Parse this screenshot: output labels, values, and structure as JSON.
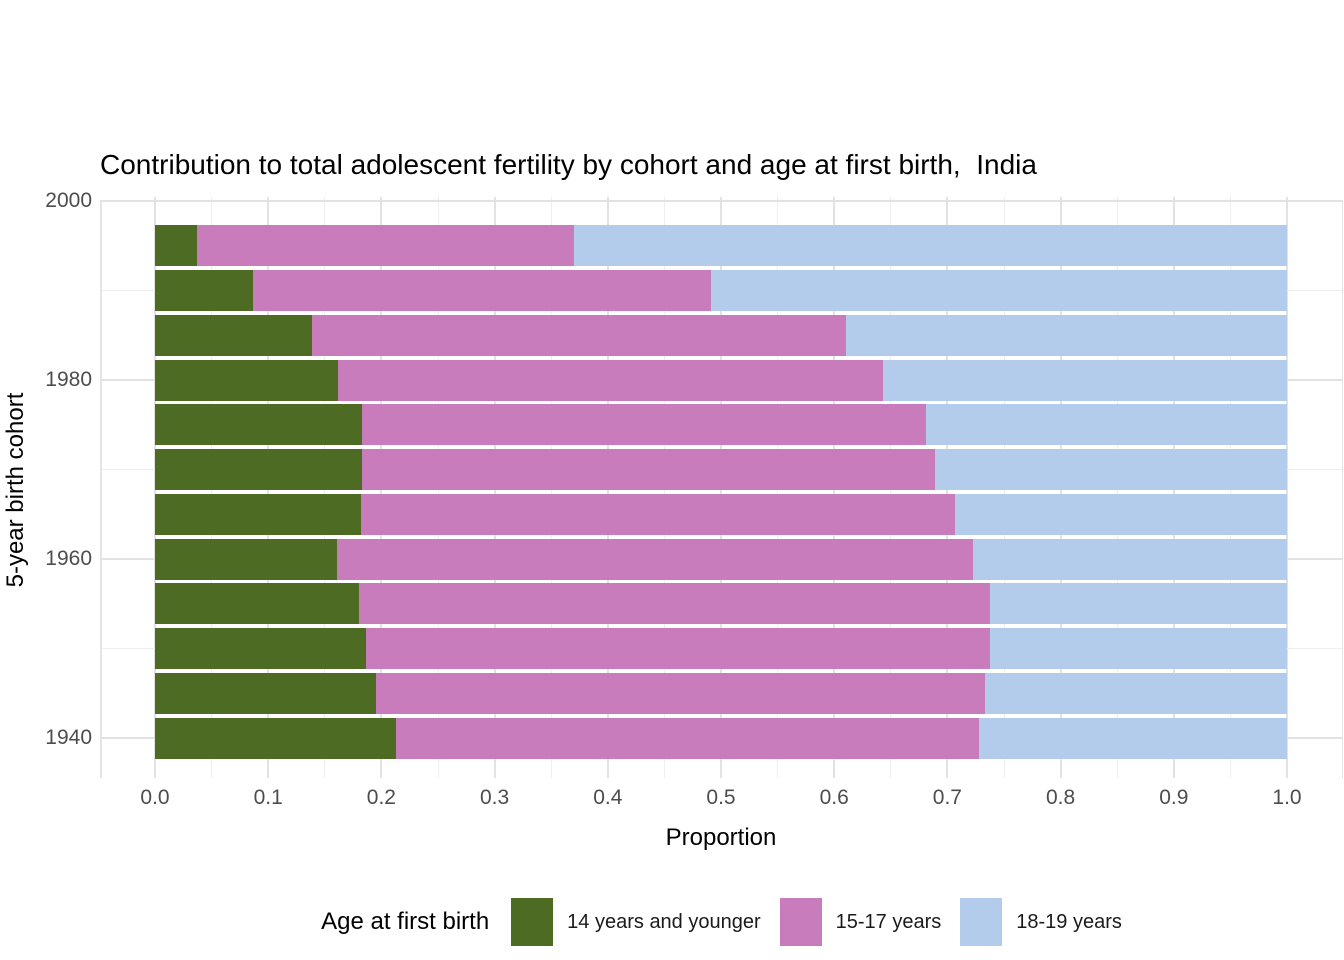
{
  "title": "Contribution to total adolescent fertility by cohort and age at first birth,  India",
  "x_axis": {
    "label": "Proportion",
    "ticks": [
      "0.0",
      "0.1",
      "0.2",
      "0.3",
      "0.4",
      "0.5",
      "0.6",
      "0.7",
      "0.8",
      "0.9",
      "1.0"
    ]
  },
  "y_axis": {
    "label": "5-year birth cohort",
    "ticks": [
      "1940",
      "1960",
      "1980",
      "2000"
    ]
  },
  "legend": {
    "title": "Age at first birth",
    "items": [
      {
        "label": "14 years and younger",
        "color": "#4d6b22"
      },
      {
        "label": "15-17 years",
        "color": "#c87cbb"
      },
      {
        "label": "18-19 years",
        "color": "#b3cceb"
      }
    ]
  },
  "colors": {
    "age_14_and_younger": "#4d6b22",
    "age_15_17": "#c87cbb",
    "age_18_19": "#b3cceb",
    "tick_text": "#4d4d4d",
    "grid_major": "#e2e2e2",
    "grid_minor": "#eeeeee"
  },
  "chart_data": {
    "type": "bar",
    "orientation": "horizontal",
    "stacked": true,
    "title": "Contribution to total adolescent fertility by cohort and age at first birth,  India",
    "xlabel": "Proportion",
    "ylabel": "5-year birth cohort",
    "xlim": [
      0.0,
      1.0
    ],
    "x_major_ticks": [
      0.0,
      0.1,
      0.2,
      0.3,
      0.4,
      0.5,
      0.6,
      0.7,
      0.8,
      0.9,
      1.0
    ],
    "x_minor_tick_step": 0.05,
    "y_major_ticks": [
      1940,
      1960,
      1980,
      2000
    ],
    "y_minor_ticks": [
      1950,
      1970,
      1990
    ],
    "grid": true,
    "legend_position": "bottom",
    "categories": [
      1995,
      1990,
      1985,
      1980,
      1975,
      1970,
      1965,
      1960,
      1955,
      1950,
      1945,
      1940
    ],
    "categories_note": "5-year birth cohorts, listed top to bottom",
    "series": [
      {
        "name": "14 years and younger",
        "color": "#4d6b22",
        "values": [
          0.037,
          0.087,
          0.139,
          0.162,
          0.183,
          0.183,
          0.182,
          0.161,
          0.18,
          0.186,
          0.195,
          0.213
        ]
      },
      {
        "name": "15-17 years",
        "color": "#c87cbb",
        "values": [
          0.333,
          0.404,
          0.471,
          0.481,
          0.498,
          0.506,
          0.525,
          0.562,
          0.558,
          0.552,
          0.538,
          0.515
        ]
      },
      {
        "name": "18-19 years",
        "color": "#b3cceb",
        "values": [
          0.63,
          0.509,
          0.39,
          0.357,
          0.319,
          0.311,
          0.293,
          0.277,
          0.262,
          0.262,
          0.267,
          0.272
        ]
      }
    ]
  }
}
